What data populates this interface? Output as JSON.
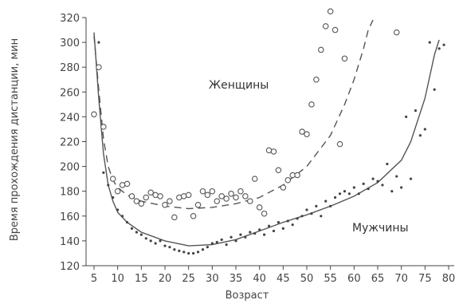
{
  "chart_data": {
    "type": "scatter",
    "title": "",
    "xlabel": "Возраст",
    "ylabel": "Время прохождения дистанции, мин",
    "xlim": [
      0,
      80
    ],
    "ylim": [
      120,
      320
    ],
    "xticks": [
      5,
      10,
      15,
      20,
      25,
      30,
      35,
      40,
      45,
      50,
      55,
      60,
      65,
      70,
      75,
      80
    ],
    "yticks": [
      120,
      140,
      160,
      180,
      200,
      220,
      240,
      260,
      280,
      300,
      320
    ],
    "grid": false,
    "series": [
      {
        "name": "Женщины",
        "marker": "open-circle",
        "points": [
          [
            5,
            242
          ],
          [
            6,
            280
          ],
          [
            7,
            232
          ],
          [
            9,
            190
          ],
          [
            10,
            180
          ],
          [
            11,
            185
          ],
          [
            12,
            186
          ],
          [
            13,
            176
          ],
          [
            14,
            172
          ],
          [
            15,
            170
          ],
          [
            16,
            175
          ],
          [
            17,
            179
          ],
          [
            18,
            177
          ],
          [
            19,
            176
          ],
          [
            20,
            169
          ],
          [
            21,
            172
          ],
          [
            22,
            159
          ],
          [
            23,
            175
          ],
          [
            24,
            176
          ],
          [
            25,
            177
          ],
          [
            26,
            160
          ],
          [
            27,
            169
          ],
          [
            28,
            180
          ],
          [
            29,
            177
          ],
          [
            30,
            180
          ],
          [
            31,
            172
          ],
          [
            32,
            176
          ],
          [
            33,
            174
          ],
          [
            34,
            178
          ],
          [
            35,
            175
          ],
          [
            36,
            180
          ],
          [
            37,
            176
          ],
          [
            38,
            172
          ],
          [
            39,
            190
          ],
          [
            40,
            167
          ],
          [
            41,
            162
          ],
          [
            42,
            213
          ],
          [
            43,
            212
          ],
          [
            44,
            197
          ],
          [
            45,
            183
          ],
          [
            46,
            189
          ],
          [
            47,
            193
          ],
          [
            48,
            193
          ],
          [
            49,
            228
          ],
          [
            50,
            226
          ],
          [
            51,
            250
          ],
          [
            52,
            270
          ],
          [
            53,
            294
          ],
          [
            54,
            313
          ],
          [
            55,
            325
          ],
          [
            56,
            310
          ],
          [
            57,
            218
          ],
          [
            58,
            287
          ],
          [
            69,
            308
          ]
        ]
      },
      {
        "name": "Мужчины",
        "marker": "dot",
        "points": [
          [
            6,
            300
          ],
          [
            7,
            195
          ],
          [
            8,
            185
          ],
          [
            9,
            175
          ],
          [
            10,
            165
          ],
          [
            11,
            160
          ],
          [
            12,
            155
          ],
          [
            13,
            150
          ],
          [
            14,
            147
          ],
          [
            15,
            145
          ],
          [
            16,
            142
          ],
          [
            17,
            140
          ],
          [
            18,
            138
          ],
          [
            19,
            140
          ],
          [
            20,
            136
          ],
          [
            21,
            135
          ],
          [
            22,
            133
          ],
          [
            23,
            132
          ],
          [
            24,
            131
          ],
          [
            25,
            130
          ],
          [
            26,
            130
          ],
          [
            27,
            131
          ],
          [
            28,
            133
          ],
          [
            29,
            135
          ],
          [
            30,
            138
          ],
          [
            31,
            139
          ],
          [
            32,
            141
          ],
          [
            33,
            137
          ],
          [
            34,
            143
          ],
          [
            35,
            140
          ],
          [
            36,
            145
          ],
          [
            37,
            143
          ],
          [
            38,
            147
          ],
          [
            39,
            146
          ],
          [
            40,
            149
          ],
          [
            41,
            145
          ],
          [
            42,
            152
          ],
          [
            43,
            148
          ],
          [
            44,
            155
          ],
          [
            45,
            150
          ],
          [
            46,
            156
          ],
          [
            47,
            153
          ],
          [
            48,
            158
          ],
          [
            49,
            160
          ],
          [
            50,
            165
          ],
          [
            51,
            162
          ],
          [
            52,
            168
          ],
          [
            53,
            160
          ],
          [
            54,
            172
          ],
          [
            55,
            168
          ],
          [
            56,
            175
          ],
          [
            57,
            178
          ],
          [
            58,
            180
          ],
          [
            59,
            178
          ],
          [
            60,
            183
          ],
          [
            61,
            178
          ],
          [
            62,
            186
          ],
          [
            63,
            182
          ],
          [
            64,
            190
          ],
          [
            65,
            188
          ],
          [
            66,
            185
          ],
          [
            67,
            202
          ],
          [
            68,
            180
          ],
          [
            69,
            192
          ],
          [
            70,
            183
          ],
          [
            71,
            240
          ],
          [
            72,
            190
          ],
          [
            73,
            245
          ],
          [
            74,
            225
          ],
          [
            75,
            230
          ],
          [
            76,
            300
          ],
          [
            77,
            262
          ],
          [
            78,
            295
          ],
          [
            79,
            298
          ]
        ]
      }
    ],
    "curves": [
      {
        "name": "Женщины",
        "style": "dashed",
        "points": [
          [
            5,
            305
          ],
          [
            6,
            262
          ],
          [
            7,
            222
          ],
          [
            8,
            200
          ],
          [
            9,
            189
          ],
          [
            10,
            183
          ],
          [
            12,
            177
          ],
          [
            15,
            172
          ],
          [
            20,
            168
          ],
          [
            25,
            166
          ],
          [
            30,
            167
          ],
          [
            35,
            170
          ],
          [
            40,
            175
          ],
          [
            45,
            185
          ],
          [
            50,
            200
          ],
          [
            55,
            225
          ],
          [
            58,
            250
          ],
          [
            60,
            270
          ],
          [
            62,
            295
          ],
          [
            63,
            310
          ],
          [
            64,
            318
          ]
        ]
      },
      {
        "name": "Мужчины",
        "style": "solid",
        "points": [
          [
            5,
            308
          ],
          [
            6,
            255
          ],
          [
            7,
            210
          ],
          [
            8,
            185
          ],
          [
            9,
            172
          ],
          [
            10,
            163
          ],
          [
            12,
            155
          ],
          [
            15,
            147
          ],
          [
            20,
            140
          ],
          [
            25,
            136
          ],
          [
            30,
            137
          ],
          [
            35,
            141
          ],
          [
            40,
            148
          ],
          [
            45,
            155
          ],
          [
            50,
            161
          ],
          [
            55,
            168
          ],
          [
            60,
            176
          ],
          [
            65,
            187
          ],
          [
            70,
            205
          ],
          [
            72,
            220
          ],
          [
            75,
            255
          ],
          [
            77,
            290
          ],
          [
            78,
            302
          ]
        ]
      }
    ]
  }
}
